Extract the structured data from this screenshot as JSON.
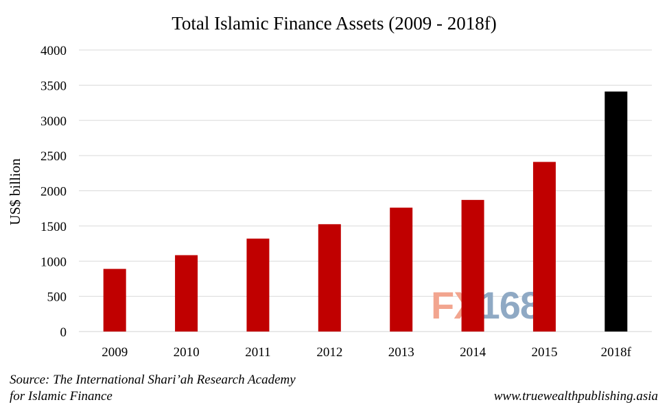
{
  "chart_data": {
    "type": "bar",
    "title": "Total Islamic Finance Assets (2009 - 2018f)",
    "xlabel": "",
    "ylabel": "US$ billion",
    "categories": [
      "2009",
      "2010",
      "2011",
      "2012",
      "2013",
      "2014",
      "2015",
      "2018f"
    ],
    "values": [
      890,
      1085,
      1320,
      1525,
      1760,
      1870,
      2410,
      3410
    ],
    "bar_colors": [
      "#c00000",
      "#c00000",
      "#c00000",
      "#c00000",
      "#c00000",
      "#c00000",
      "#c00000",
      "#000000"
    ],
    "ylim": [
      0,
      4000
    ],
    "yticks": [
      "0",
      "500",
      "1000",
      "1500",
      "2000",
      "2500",
      "3000",
      "3500",
      "4000"
    ],
    "grid": true,
    "legend": "none"
  },
  "source": {
    "line1": "Source: The International Shari’ah Research Academy",
    "line2": "for Islamic Finance"
  },
  "website": "www.truewealthpublishing.asia",
  "watermark": {
    "part1": "FX",
    "part2": "168",
    "color1": "#f2a58f",
    "color2": "#8fa9c4"
  }
}
